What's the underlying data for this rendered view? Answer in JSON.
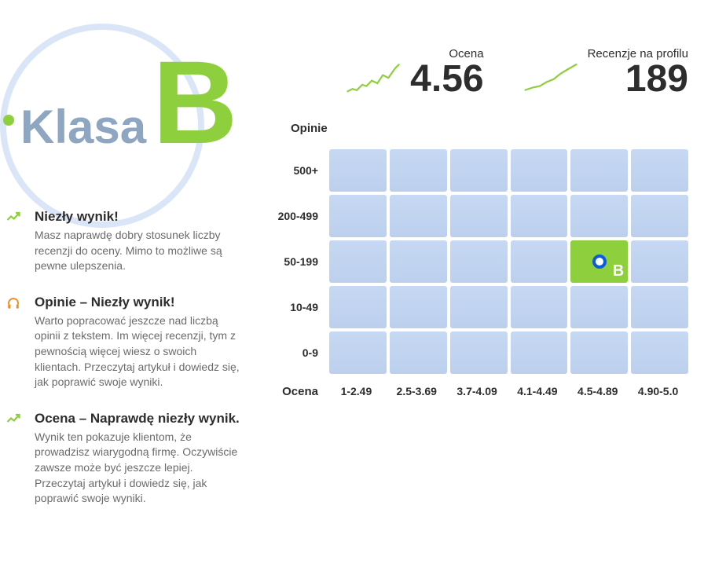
{
  "badge": {
    "label": "Klasa",
    "letter": "B",
    "dot_color": "#8ecf3e",
    "letter_color": "#8ecf3e",
    "label_color": "#8fa6c2",
    "circle_color": "#dae6f7"
  },
  "tips": [
    {
      "icon": "trend-up",
      "icon_color": "#8ecf3e",
      "title": "Niezły wynik!",
      "body": "Masz naprawdę dobry stosunek liczby recenzji do oceny. Mimo to możliwe są pewne ulepszenia."
    },
    {
      "icon": "headphones",
      "icon_color": "#f58a1f",
      "title": "Opinie – Niezły wynik!",
      "body": "Warto popracować jeszcze nad liczbą opinii z tekstem. Im więcej recenzji, tym z pewnością więcej wiesz o swoich klientach. Przeczytaj artykuł i dowiedz się, jak poprawić swoje wyniki."
    },
    {
      "icon": "trend-up",
      "icon_color": "#8ecf3e",
      "title": "Ocena – Naprawdę niezły wynik.",
      "body": "Wynik ten pokazuje klientom, że prowadzisz wiarygodną firmę. Oczywiście zawsze może być jeszcze lepiej. Przeczytaj artykuł i dowiedz się, jak poprawić swoje wyniki."
    }
  ],
  "stats": {
    "score": {
      "label": "Ocena",
      "value": "4.56",
      "spark_color": "#8ecf3e"
    },
    "reviews": {
      "label": "Recenzje na profilu",
      "value": "189",
      "spark_color": "#8ecf3e"
    }
  },
  "matrix": {
    "y_title": "Opinie",
    "x_title": "Ocena",
    "y_labels": [
      "500+",
      "200-499",
      "50-199",
      "10-49",
      "0-9"
    ],
    "x_labels": [
      "1-2.49",
      "2.5-3.69",
      "3.7-4.09",
      "4.1-4.49",
      "4.5-4.89",
      "4.90-5.0"
    ],
    "cell_bg_from": "#c6d8f2",
    "cell_bg_to": "#bcd0ee",
    "active_color": "#8ecf3e",
    "marker_color": "#0a5be0",
    "active": {
      "row": 2,
      "col": 4,
      "letter": "B"
    }
  }
}
